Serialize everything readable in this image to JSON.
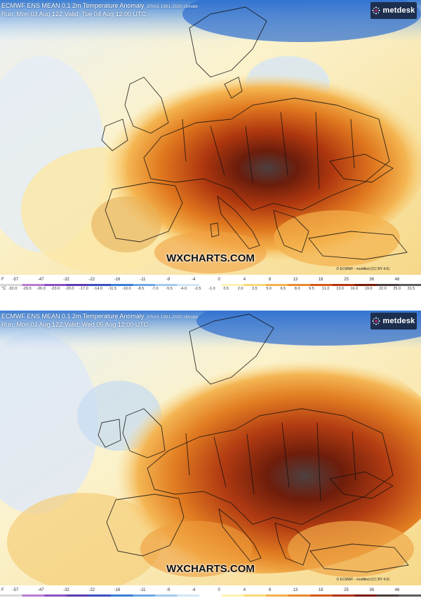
{
  "panels": [
    {
      "title": "ECMWF ENS MEAN 0.1 2m Temperature Anomaly",
      "climate": "ERA5 1991-2020 climate",
      "run": "Run: Mon 03 Aug 12Z Valid: Tue 04 Aug 12:00 UTC"
    },
    {
      "title": "ECMWF ENS MEAN 0.1 2m Temperature Anomaly",
      "climate": "ERA5 1991-2020 climate",
      "run": "Run: Mon 03 Aug 12Z Valid: Wed 05 Aug 12:00 UTC"
    }
  ],
  "brand": {
    "logo_text": "metdesk",
    "watermark": "WXCHARTS.COM",
    "credit": "© ECMWF - modified (CC BY 4.0)",
    "logo_color": "#1c2f4f"
  },
  "legend": {
    "f_unit": "F",
    "c_unit": "°C",
    "f_ticks": [
      "-57",
      "-47",
      "-32",
      "-22",
      "-16",
      "-11",
      "-9",
      "-4",
      "0",
      "4",
      "8",
      "13",
      "18",
      "25",
      "36",
      "46"
    ],
    "c_ticks": [
      "-32.0",
      "-29.0",
      "-26.0",
      "-23.0",
      "-20.0",
      "-17.0",
      "-14.0",
      "-11.5",
      "-10.0",
      "-8.5",
      "-7.0",
      "-5.5",
      "-4.0",
      "-2.5",
      "-1.0",
      "0.5",
      "2.0",
      "3.5",
      "5.0",
      "6.5",
      "8.0",
      "9.5",
      "11.0",
      "13.0",
      "16.0",
      "19.0",
      "22.0",
      "25.0",
      "31.5"
    ],
    "colors": [
      "#d8d8d8",
      "#b77ad0",
      "#8a4fc0",
      "#5b3bb0",
      "#3b4fc0",
      "#3a7bd5",
      "#69a6e3",
      "#a3c9ef",
      "#d3e6f6",
      "#ffffff",
      "#fff2b0",
      "#fbd878",
      "#f4b04a",
      "#e88a2c",
      "#d4581b",
      "#b03310",
      "#7a1a08",
      "#4a3a3a",
      "#5a5a5a"
    ]
  }
}
